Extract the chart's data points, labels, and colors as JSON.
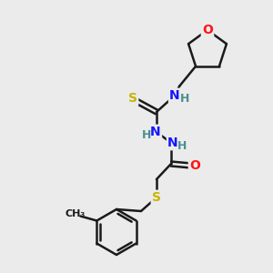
{
  "bg_color": "#ebebeb",
  "bond_color": "#1a1a1a",
  "bond_lw": 1.8,
  "atom_colors": {
    "N": "#1414ff",
    "O": "#ff1414",
    "S": "#c8b400",
    "H": "#4a9090",
    "C": "#1a1a1a"
  },
  "font_size": 10,
  "font_size_small": 9
}
